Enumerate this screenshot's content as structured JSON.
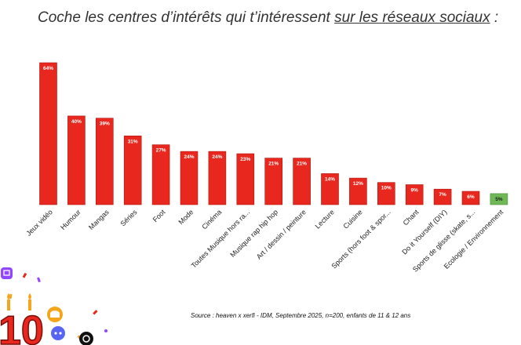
{
  "title": {
    "prefix": "Coche les centres d’intérêts qui t’intéressent ",
    "emphasis": "sur les réseaux sociaux",
    "suffix": " :"
  },
  "source": "Source : heaven x xerfi - IDM, Septembre 2025,  n=200, enfants de 11 & 12 ans",
  "colors": {
    "bar": "#e8281e",
    "highlight": "#6fb856",
    "bar_border": "#b0170f"
  },
  "chart_data": {
    "type": "bar",
    "categories": [
      "Jeux vidéo",
      "Humour",
      "Mangas",
      "Séries",
      "Foot",
      "Mode",
      "Cinéma",
      "Toutes Musique hors ra...",
      "Musique rap hip hop",
      "Art / dessin / peinture",
      "Lecture",
      "Cuisine",
      "Sports (hors foot & spor...",
      "Chant",
      "Do it Yourself (DIY)",
      "Sports de glisse (skate, s...",
      "Ecologie / Environnement"
    ],
    "values": [
      64,
      40,
      39,
      31,
      27,
      24,
      24,
      23,
      21,
      21,
      14,
      12,
      10,
      9,
      7,
      6,
      5
    ],
    "data_labels": [
      "64%",
      "40%",
      "39%",
      "31%",
      "27%",
      "24%",
      "24%",
      "23%",
      "21%",
      "21%",
      "14%",
      "12%",
      "10%",
      "9%",
      "7%",
      "6%",
      "5%"
    ],
    "highlight_index": 16,
    "ylim": [
      0,
      64
    ]
  },
  "decor": {
    "badge_number": "10",
    "icons": [
      "twitch-icon",
      "bell-icon",
      "discord-icon",
      "threads-icon"
    ]
  }
}
